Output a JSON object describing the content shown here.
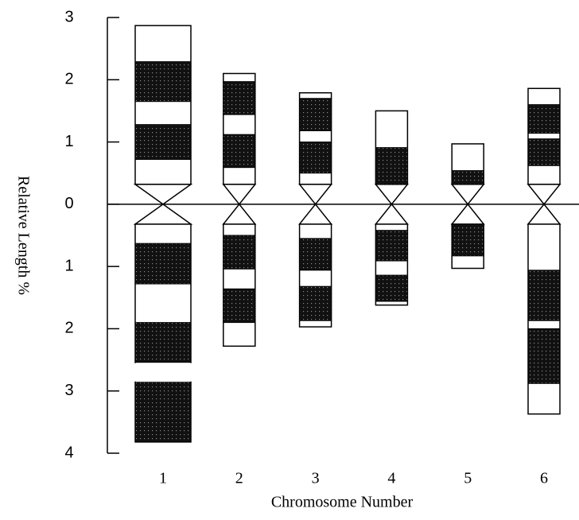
{
  "chart_data": {
    "type": "idiogram",
    "y_label": "Relative Length %",
    "x_label": "Chromosome Number",
    "categories": [
      "1",
      "2",
      "3",
      "4",
      "5",
      "6"
    ],
    "ylim": [
      -4,
      3
    ],
    "yticks": [
      {
        "value": 3,
        "label": "3"
      },
      {
        "value": 2,
        "label": "2"
      },
      {
        "value": 1,
        "label": "1"
      },
      {
        "value": 0,
        "label": "0"
      },
      {
        "value": -1,
        "label": "1"
      },
      {
        "value": -2,
        "label": "2"
      },
      {
        "value": -3,
        "label": "3"
      },
      {
        "value": -4,
        "label": "4"
      }
    ],
    "chromosomes": [
      {
        "short_arm": 2.87,
        "long_arm": -3.82,
        "bands": [
          [
            2.29,
            1.65
          ],
          [
            1.28,
            0.72
          ],
          [
            -0.63,
            -1.28
          ],
          [
            -1.9,
            -2.54
          ],
          [
            -2.86,
            -3.82
          ]
        ],
        "gaps": [
          [
            -2.54,
            -2.86
          ]
        ]
      },
      {
        "short_arm": 2.1,
        "long_arm": -2.28,
        "bands": [
          [
            1.97,
            1.44
          ],
          [
            1.12,
            0.59
          ],
          [
            -0.5,
            -1.04
          ],
          [
            -1.36,
            -1.9
          ]
        ],
        "gaps": []
      },
      {
        "short_arm": 1.79,
        "long_arm": -1.97,
        "bands": [
          [
            1.7,
            1.18
          ],
          [
            1.0,
            0.5
          ],
          [
            -0.55,
            -1.06
          ],
          [
            -1.32,
            -1.87
          ]
        ],
        "gaps": []
      },
      {
        "short_arm": 1.5,
        "long_arm": -1.62,
        "bands": [
          [
            0.91,
            0.32
          ],
          [
            -0.42,
            -0.91
          ],
          [
            -1.14,
            -1.56
          ]
        ],
        "gaps": []
      },
      {
        "short_arm": 0.97,
        "long_arm": -1.03,
        "bands": [
          [
            0.54,
            0.32
          ],
          [
            -0.32,
            -0.83
          ]
        ],
        "gaps": []
      },
      {
        "short_arm": 1.86,
        "long_arm": -3.37,
        "bands": [
          [
            1.6,
            1.14
          ],
          [
            1.05,
            0.62
          ],
          [
            -1.06,
            -1.87
          ],
          [
            -2.0,
            -2.88
          ]
        ],
        "gaps": []
      }
    ]
  }
}
